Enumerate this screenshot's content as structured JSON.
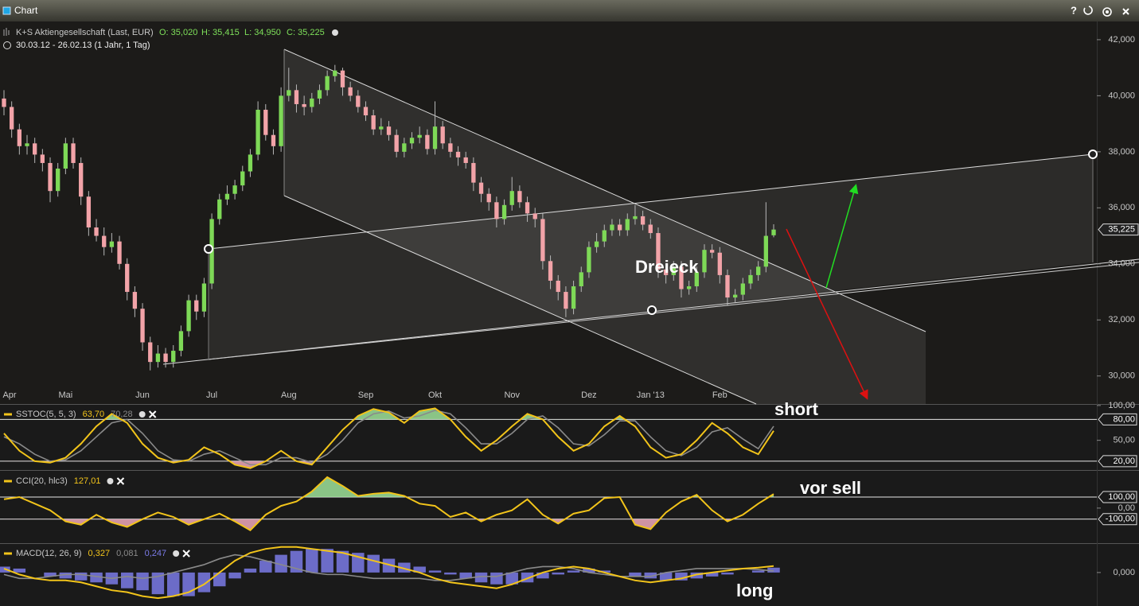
{
  "window": {
    "title": "Chart",
    "help": "?"
  },
  "chart_data": [
    {
      "type": "candlestick",
      "title": "K+S Aktiengesellschaft (Last, EUR)",
      "ohlc_labels": [
        "O: 35,020",
        "H: 35,415",
        "L: 34,950",
        "C: 35,225"
      ],
      "subtitle": "30.03.12 - 26.02.13 (1 Jahr, 1 Tag)",
      "annotation": "Dreieck",
      "last_label": "35,225",
      "up_color": "#7ed957",
      "down_color": "#f2a3a8",
      "ylim": [
        29,
        42.65
      ],
      "yticks": [
        {
          "value": 42,
          "label": "42,000"
        },
        {
          "value": 40,
          "label": "40,000"
        },
        {
          "value": 38,
          "label": "38,000"
        },
        {
          "value": 36,
          "label": "36,000"
        },
        {
          "value": 34,
          "label": "34,000"
        },
        {
          "value": 32,
          "label": "32,000"
        },
        {
          "value": 30,
          "label": "30,000"
        }
      ],
      "categories": [
        "Apr",
        null,
        null,
        null,
        null,
        null,
        null,
        null,
        "Mai",
        null,
        null,
        null,
        null,
        null,
        null,
        null,
        null,
        null,
        "Jun",
        null,
        null,
        null,
        null,
        null,
        null,
        null,
        null,
        "Jul",
        null,
        null,
        null,
        null,
        null,
        null,
        null,
        null,
        null,
        "Aug",
        null,
        null,
        null,
        null,
        null,
        null,
        null,
        null,
        null,
        "Sep",
        null,
        null,
        null,
        null,
        null,
        null,
        null,
        null,
        "Okt",
        null,
        null,
        null,
        null,
        null,
        null,
        null,
        null,
        null,
        "Nov",
        null,
        null,
        null,
        null,
        null,
        null,
        null,
        null,
        null,
        "Dez",
        null,
        null,
        null,
        null,
        null,
        null,
        null,
        "Jan '13",
        null,
        null,
        null,
        null,
        null,
        null,
        null,
        null,
        "Feb",
        null,
        null,
        null,
        null,
        null,
        null,
        null
      ],
      "candles": [
        [
          39.9,
          40.2,
          39.3,
          39.6
        ],
        [
          39.6,
          39.8,
          38.5,
          38.8
        ],
        [
          38.8,
          39.0,
          37.9,
          38.2
        ],
        [
          38.2,
          38.6,
          37.9,
          38.3
        ],
        [
          38.3,
          38.5,
          37.6,
          37.9
        ],
        [
          37.9,
          38.1,
          37.3,
          37.6
        ],
        [
          37.6,
          37.8,
          36.2,
          36.6
        ],
        [
          36.6,
          37.6,
          36.4,
          37.4
        ],
        [
          37.4,
          38.5,
          37.2,
          38.3
        ],
        [
          38.3,
          38.5,
          37.4,
          37.6
        ],
        [
          37.6,
          37.8,
          36.1,
          36.4
        ],
        [
          36.4,
          36.6,
          35.0,
          35.3
        ],
        [
          35.3,
          35.6,
          34.8,
          35.0
        ],
        [
          35.0,
          35.3,
          34.3,
          34.6
        ],
        [
          34.6,
          35.1,
          34.4,
          34.8
        ],
        [
          34.8,
          35.0,
          33.8,
          34.0
        ],
        [
          34.0,
          34.2,
          32.7,
          33.0
        ],
        [
          33.0,
          33.2,
          32.1,
          32.4
        ],
        [
          32.4,
          32.6,
          30.9,
          31.2
        ],
        [
          31.2,
          31.4,
          30.2,
          30.5
        ],
        [
          30.5,
          31.1,
          30.3,
          30.8
        ],
        [
          30.8,
          31.0,
          30.3,
          30.5
        ],
        [
          30.5,
          31.1,
          30.3,
          30.9
        ],
        [
          30.9,
          31.8,
          30.7,
          31.6
        ],
        [
          31.6,
          32.9,
          31.4,
          32.7
        ],
        [
          32.7,
          32.9,
          32.0,
          32.3
        ],
        [
          32.3,
          33.5,
          32.1,
          33.3
        ],
        [
          33.3,
          35.8,
          33.1,
          35.6
        ],
        [
          35.6,
          36.5,
          35.4,
          36.3
        ],
        [
          36.3,
          36.8,
          36.1,
          36.5
        ],
        [
          36.5,
          37.0,
          36.3,
          36.8
        ],
        [
          36.8,
          37.5,
          36.6,
          37.3
        ],
        [
          37.3,
          38.1,
          37.1,
          37.9
        ],
        [
          37.9,
          39.8,
          37.7,
          39.5
        ],
        [
          39.5,
          39.7,
          38.4,
          38.6
        ],
        [
          38.6,
          38.8,
          37.9,
          38.2
        ],
        [
          38.2,
          40.3,
          38.0,
          40.0
        ],
        [
          40.0,
          41.0,
          39.8,
          40.2
        ],
        [
          40.2,
          40.4,
          39.4,
          39.7
        ],
        [
          39.7,
          40.0,
          39.3,
          39.6
        ],
        [
          39.6,
          40.1,
          39.4,
          39.9
        ],
        [
          39.9,
          40.4,
          39.7,
          40.2
        ],
        [
          40.2,
          40.9,
          40.0,
          40.7
        ],
        [
          40.7,
          41.1,
          40.5,
          40.9
        ],
        [
          40.9,
          41.0,
          40.0,
          40.3
        ],
        [
          40.3,
          40.5,
          39.8,
          40.0
        ],
        [
          40.0,
          40.2,
          39.4,
          39.6
        ],
        [
          39.6,
          39.8,
          39.1,
          39.3
        ],
        [
          39.3,
          39.5,
          38.6,
          38.8
        ],
        [
          38.8,
          39.2,
          38.6,
          38.9
        ],
        [
          38.9,
          39.1,
          38.4,
          38.6
        ],
        [
          38.6,
          38.8,
          37.8,
          38.0
        ],
        [
          38.0,
          38.5,
          37.8,
          38.3
        ],
        [
          38.3,
          38.7,
          38.1,
          38.5
        ],
        [
          38.5,
          38.9,
          38.3,
          38.6
        ],
        [
          38.6,
          38.8,
          37.9,
          38.1
        ],
        [
          38.1,
          39.8,
          37.9,
          38.9
        ],
        [
          38.9,
          39.1,
          38.1,
          38.3
        ],
        [
          38.3,
          38.5,
          37.8,
          38.0
        ],
        [
          38.0,
          38.2,
          37.5,
          37.8
        ],
        [
          37.8,
          38.0,
          37.4,
          37.6
        ],
        [
          37.6,
          37.8,
          36.6,
          36.9
        ],
        [
          36.9,
          37.1,
          36.2,
          36.5
        ],
        [
          36.5,
          36.7,
          35.9,
          36.2
        ],
        [
          36.2,
          36.4,
          35.3,
          35.6
        ],
        [
          35.6,
          36.3,
          35.4,
          36.1
        ],
        [
          36.1,
          37.1,
          35.9,
          36.6
        ],
        [
          36.6,
          36.8,
          36.0,
          36.2
        ],
        [
          36.2,
          36.4,
          35.5,
          35.8
        ],
        [
          35.8,
          36.0,
          35.3,
          35.6
        ],
        [
          35.6,
          35.8,
          33.8,
          34.1
        ],
        [
          34.1,
          34.3,
          33.1,
          33.4
        ],
        [
          33.4,
          33.6,
          32.7,
          33.0
        ],
        [
          33.0,
          33.2,
          32.1,
          32.4
        ],
        [
          32.4,
          33.4,
          32.2,
          33.2
        ],
        [
          33.2,
          33.9,
          33.0,
          33.7
        ],
        [
          33.7,
          34.8,
          33.5,
          34.6
        ],
        [
          34.6,
          35.1,
          34.4,
          34.8
        ],
        [
          34.8,
          35.4,
          34.6,
          35.2
        ],
        [
          35.2,
          35.6,
          35.0,
          35.4
        ],
        [
          35.4,
          35.6,
          35.0,
          35.2
        ],
        [
          35.2,
          35.8,
          35.0,
          35.6
        ],
        [
          35.6,
          36.1,
          35.4,
          35.7
        ],
        [
          35.7,
          35.9,
          35.2,
          35.4
        ],
        [
          35.4,
          35.6,
          34.9,
          35.1
        ],
        [
          35.1,
          35.3,
          33.5,
          33.8
        ],
        [
          33.8,
          34.0,
          33.3,
          33.6
        ],
        [
          33.6,
          34.1,
          33.4,
          33.9
        ],
        [
          33.9,
          34.1,
          32.8,
          33.1
        ],
        [
          33.1,
          33.4,
          32.9,
          33.2
        ],
        [
          33.2,
          33.9,
          33.0,
          33.7
        ],
        [
          33.7,
          34.7,
          33.5,
          34.5
        ],
        [
          34.5,
          34.7,
          34.2,
          34.4
        ],
        [
          34.4,
          34.6,
          33.3,
          33.6
        ],
        [
          33.6,
          33.8,
          32.5,
          32.8
        ],
        [
          32.8,
          33.1,
          32.6,
          32.9
        ],
        [
          32.9,
          33.5,
          32.7,
          33.3
        ],
        [
          33.3,
          33.8,
          33.1,
          33.6
        ],
        [
          33.6,
          34.1,
          33.4,
          33.9
        ],
        [
          33.9,
          36.2,
          33.7,
          35.0
        ],
        [
          35.02,
          35.415,
          34.95,
          35.225
        ]
      ]
    },
    {
      "type": "line",
      "title": "SSTOC(5, 5, 3)",
      "legend_values": [
        "63,70",
        "70,28"
      ],
      "annotation": "short",
      "ylim": [
        8.5,
        101
      ],
      "yticks": [
        {
          "value": 100,
          "label": "100,00"
        },
        {
          "value": 50,
          "label": "50,00"
        }
      ],
      "levels": [
        {
          "value": 80,
          "label": "80,00"
        },
        {
          "value": 20,
          "label": "20,00"
        }
      ],
      "fill_colors": [
        "#9fe39a",
        "#f0a9bb"
      ],
      "series": [
        {
          "color": "#f2c41a",
          "values": [
            60,
            35,
            20,
            18,
            25,
            45,
            70,
            88,
            75,
            45,
            25,
            18,
            22,
            40,
            30,
            15,
            10,
            20,
            35,
            20,
            15,
            40,
            65,
            85,
            95,
            90,
            75,
            92,
            96,
            80,
            55,
            35,
            50,
            70,
            88,
            80,
            55,
            35,
            45,
            70,
            85,
            70,
            40,
            25,
            30,
            50,
            75,
            60,
            40,
            30,
            63.7
          ]
        },
        {
          "color": "#8a8a8a",
          "values": [
            55,
            45,
            30,
            20,
            22,
            35,
            55,
            75,
            80,
            60,
            35,
            22,
            20,
            30,
            35,
            25,
            15,
            15,
            25,
            25,
            18,
            30,
            50,
            75,
            88,
            92,
            82,
            85,
            93,
            88,
            68,
            45,
            45,
            60,
            80,
            85,
            68,
            45,
            42,
            58,
            78,
            78,
            55,
            35,
            28,
            40,
            62,
            68,
            52,
            38,
            70.28
          ]
        }
      ]
    },
    {
      "type": "line",
      "title": "CCI(20, hlc3)",
      "legend_values": [
        "127,01"
      ],
      "annotation": "vor sell",
      "ylim": [
        -310,
        330
      ],
      "yticks": [
        {
          "value": 0,
          "label": "0,00"
        }
      ],
      "levels": [
        {
          "value": 100,
          "label": "100,00"
        },
        {
          "value": -100,
          "label": "-100,00"
        }
      ],
      "fill_colors": [
        "#9fe39a",
        "#f0a9bb"
      ],
      "series": [
        {
          "color": "#f2c41a",
          "values": [
            80,
            100,
            40,
            -20,
            -120,
            -150,
            -60,
            -130,
            -170,
            -100,
            -40,
            -80,
            -150,
            -100,
            -50,
            -120,
            -200,
            -60,
            20,
            60,
            150,
            280,
            200,
            110,
            130,
            140,
            110,
            40,
            20,
            -80,
            -40,
            -120,
            -60,
            -20,
            80,
            -60,
            -140,
            -50,
            -20,
            90,
            100,
            -150,
            -190,
            -40,
            60,
            120,
            -20,
            -120,
            -60,
            40,
            127.01
          ]
        }
      ]
    },
    {
      "type": "macd",
      "title": "MACD(12, 26, 9)",
      "legend_values": [
        "0,327",
        "0,081",
        "0,247"
      ],
      "annotation": "long",
      "ylim": [
        -1.7,
        1.45
      ],
      "yticks": [
        {
          "value": 0,
          "label": "0,000"
        }
      ],
      "series": [
        {
          "color": "#f2c41a",
          "values": [
            0.2,
            -0.1,
            -0.3,
            -0.4,
            -0.4,
            -0.5,
            -0.7,
            -0.9,
            -1.0,
            -1.2,
            -1.3,
            -1.2,
            -1.0,
            -0.6,
            0.0,
            0.6,
            1.0,
            1.2,
            1.3,
            1.3,
            1.2,
            1.1,
            1.0,
            0.8,
            0.6,
            0.4,
            0.2,
            0.0,
            -0.3,
            -0.5,
            -0.6,
            -0.7,
            -0.8,
            -0.6,
            -0.3,
            0.0,
            0.2,
            0.3,
            0.2,
            0.0,
            -0.2,
            -0.4,
            -0.5,
            -0.4,
            -0.3,
            -0.1,
            0.0,
            0.1,
            0.2,
            0.25,
            0.327
          ]
        },
        {
          "color": "#8a8a8a",
          "values": [
            -0.1,
            -0.3,
            -0.3,
            -0.2,
            -0.1,
            -0.1,
            -0.2,
            -0.3,
            -0.2,
            -0.3,
            -0.2,
            0.0,
            0.2,
            0.4,
            0.7,
            0.9,
            0.8,
            0.6,
            0.4,
            0.2,
            0.0,
            -0.1,
            -0.1,
            -0.2,
            -0.3,
            -0.3,
            -0.3,
            -0.3,
            -0.4,
            -0.4,
            -0.3,
            -0.2,
            -0.2,
            0.0,
            0.2,
            0.3,
            0.3,
            0.2,
            0.0,
            -0.1,
            -0.2,
            -0.2,
            -0.2,
            0.0,
            0.1,
            0.2,
            0.2,
            0.2,
            0.2,
            0.15,
            0.081
          ]
        },
        {
          "color": "#7b7be8",
          "values": [
            0.3,
            0.2,
            0.0,
            -0.2,
            -0.3,
            -0.4,
            -0.5,
            -0.6,
            -0.8,
            -0.9,
            -1.1,
            -1.2,
            -1.2,
            -1.0,
            -0.7,
            -0.3,
            0.2,
            0.6,
            0.9,
            1.1,
            1.2,
            1.2,
            1.1,
            1.0,
            0.9,
            0.7,
            0.5,
            0.3,
            0.1,
            -0.1,
            -0.3,
            -0.5,
            -0.6,
            -0.6,
            -0.5,
            -0.3,
            -0.1,
            0.1,
            0.2,
            0.1,
            0.0,
            -0.2,
            -0.3,
            -0.4,
            -0.4,
            -0.3,
            -0.2,
            -0.1,
            0.0,
            0.1,
            0.247
          ]
        }
      ]
    }
  ]
}
